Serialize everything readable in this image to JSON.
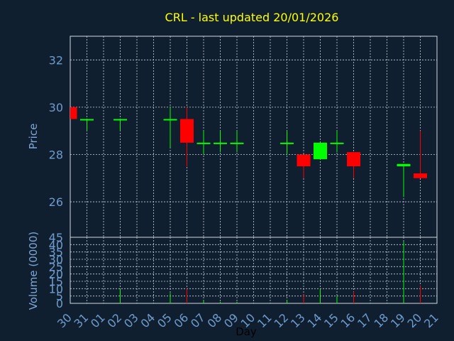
{
  "colors": {
    "background": "#0f1f30",
    "title": "#ffff00",
    "axis_text": "#7fa6d4",
    "grid": "#c8d2dc",
    "frame": "#d0d8e0",
    "up": "#00ff00",
    "down": "#ff0000",
    "tick_label": "#6f9ccc"
  },
  "chart_data": [
    {
      "type": "candlestick",
      "title": "CRL - last updated 20/01/2026",
      "ylabel": "Price",
      "ylim": [
        24.5,
        33
      ],
      "y_ticks": [
        26,
        28,
        30,
        32
      ],
      "grid": true,
      "x": [
        "30",
        "31",
        "01",
        "02",
        "03",
        "04",
        "05",
        "06",
        "07",
        "08",
        "09",
        "10",
        "11",
        "12",
        "13",
        "14",
        "15",
        "16",
        "17",
        "18",
        "19",
        "20",
        "21"
      ],
      "candles": [
        {
          "day": "30",
          "open": 30.0,
          "high": 30.0,
          "low": 29.5,
          "close": 29.5
        },
        {
          "day": "31",
          "open": 29.5,
          "high": 29.5,
          "low": 29.0,
          "close": 29.5
        },
        {
          "day": "02",
          "open": 29.5,
          "high": 29.5,
          "low": 29.0,
          "close": 29.5
        },
        {
          "day": "05",
          "open": 29.5,
          "high": 30.0,
          "low": 28.3,
          "close": 29.5
        },
        {
          "day": "06",
          "open": 29.5,
          "high": 30.0,
          "low": 27.5,
          "close": 28.5
        },
        {
          "day": "07",
          "open": 28.5,
          "high": 29.0,
          "low": 28.0,
          "close": 28.5
        },
        {
          "day": "08",
          "open": 28.5,
          "high": 29.0,
          "low": 28.1,
          "close": 28.5
        },
        {
          "day": "09",
          "open": 28.5,
          "high": 29.0,
          "low": 28.1,
          "close": 28.5
        },
        {
          "day": "12",
          "open": 28.5,
          "high": 29.0,
          "low": 28.0,
          "close": 28.5
        },
        {
          "day": "13",
          "open": 28.0,
          "high": 28.0,
          "low": 27.0,
          "close": 27.5
        },
        {
          "day": "14",
          "open": 27.8,
          "high": 28.5,
          "low": 27.8,
          "close": 28.5
        },
        {
          "day": "15",
          "open": 28.5,
          "high": 29.0,
          "low": 28.1,
          "close": 28.5
        },
        {
          "day": "16",
          "open": 28.1,
          "high": 28.1,
          "low": 27.0,
          "close": 27.5
        },
        {
          "day": "19",
          "open": 27.5,
          "high": 27.6,
          "low": 26.2,
          "close": 27.6
        },
        {
          "day": "20",
          "open": 27.2,
          "high": 29.0,
          "low": 27.0,
          "close": 27.0
        }
      ]
    },
    {
      "type": "bar",
      "ylabel": "Volume (0000)",
      "xlabel": "Day",
      "ylim": [
        0,
        45
      ],
      "y_ticks": [
        0,
        5,
        10,
        15,
        20,
        25,
        30,
        35,
        40,
        45
      ],
      "grid": true,
      "categories": [
        "30",
        "31",
        "01",
        "02",
        "03",
        "04",
        "05",
        "06",
        "07",
        "08",
        "09",
        "10",
        "11",
        "12",
        "13",
        "14",
        "15",
        "16",
        "17",
        "18",
        "19",
        "20",
        "21"
      ],
      "values": [
        {
          "day": "02",
          "value": 10,
          "direction": "up"
        },
        {
          "day": "05",
          "value": 7,
          "direction": "up"
        },
        {
          "day": "06",
          "value": 10,
          "direction": "down"
        },
        {
          "day": "07",
          "value": 2,
          "direction": "up"
        },
        {
          "day": "08",
          "value": 1,
          "direction": "up"
        },
        {
          "day": "09",
          "value": 1,
          "direction": "up"
        },
        {
          "day": "12",
          "value": 2,
          "direction": "up"
        },
        {
          "day": "13",
          "value": 6,
          "direction": "down"
        },
        {
          "day": "14",
          "value": 10,
          "direction": "up"
        },
        {
          "day": "15",
          "value": 5,
          "direction": "up"
        },
        {
          "day": "16",
          "value": 8,
          "direction": "down"
        },
        {
          "day": "19",
          "value": 42,
          "direction": "up"
        },
        {
          "day": "20",
          "value": 12,
          "direction": "down"
        }
      ]
    }
  ]
}
